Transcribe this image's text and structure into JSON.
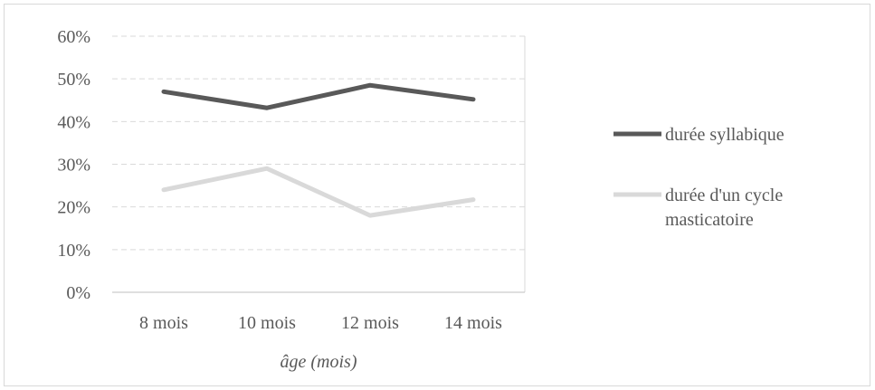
{
  "chart_data": {
    "type": "line",
    "categories": [
      "8 mois",
      "10 mois",
      "12 mois",
      "14 mois"
    ],
    "series": [
      {
        "name": "durée syllabique",
        "values": [
          47,
          43.2,
          48.5,
          45.2
        ],
        "color": "#595959"
      },
      {
        "name": "durée d'un cycle masticatoire",
        "legend_lines": [
          "durée d'un cycle",
          "masticatoire"
        ],
        "values": [
          24,
          29,
          18,
          21.7
        ],
        "color": "#d9d9d9"
      }
    ],
    "y_ticks": [
      "0%",
      "10%",
      "20%",
      "30%",
      "40%",
      "50%",
      "60%"
    ],
    "ylim": [
      0,
      60
    ],
    "xlabel": "âge (mois)",
    "ylabel": "",
    "title": "",
    "grid": true,
    "legend_position": "right"
  }
}
